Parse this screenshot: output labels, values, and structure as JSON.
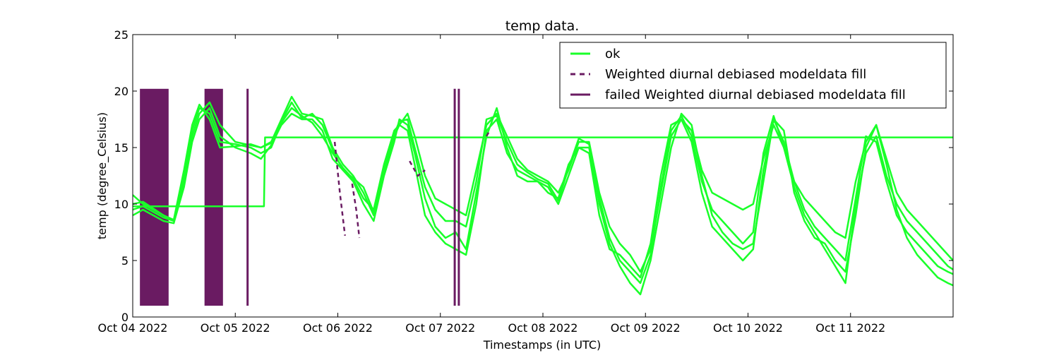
{
  "chart_data": {
    "type": "line",
    "title": "temp data.",
    "xlabel": "Timestamps (in UTC)",
    "ylabel": "temp (degree_Celsius)",
    "ylim": [
      0,
      25
    ],
    "xlim": [
      0,
      8
    ],
    "x_unit": "days since Oct 04 2022 00:00 UTC",
    "grid": false,
    "legend_position": "top-right",
    "yticks": [
      0,
      5,
      10,
      15,
      20,
      25
    ],
    "xticks": [
      {
        "value": 0,
        "label": "Oct 04 2022"
      },
      {
        "value": 1,
        "label": "Oct 05 2022"
      },
      {
        "value": 2,
        "label": "Oct 06 2022"
      },
      {
        "value": 3,
        "label": "Oct 07 2022"
      },
      {
        "value": 4,
        "label": "Oct 08 2022"
      },
      {
        "value": 5,
        "label": "Oct 09 2022"
      },
      {
        "value": 6,
        "label": "Oct 10 2022"
      },
      {
        "value": 7,
        "label": "Oct 11 2022"
      }
    ],
    "legend": [
      {
        "label": "ok",
        "style": "solid",
        "color": "#19ff29"
      },
      {
        "label": "Weighted diurnal debiased modeldata fill",
        "style": "dashed",
        "color": "#6a1b62"
      },
      {
        "label": "failed Weighted diurnal debiased modeldata fill",
        "style": "solid",
        "color": "#6a1b62"
      }
    ],
    "colors": {
      "ok": "#19ff29",
      "fill": "#6a1b62"
    },
    "series": [
      {
        "name": "ok",
        "x": [
          0,
          0.1,
          0.2,
          0.3,
          0.4,
          0.5,
          0.58,
          0.65,
          0.75,
          0.85,
          1.0,
          1.15,
          1.25,
          1.35,
          1.45,
          1.55,
          1.65,
          1.75,
          1.85,
          1.95,
          2.05,
          2.15,
          2.25,
          2.35,
          2.45,
          2.55,
          2.6,
          2.68,
          2.75,
          2.85,
          2.95,
          3.05,
          3.15,
          3.25,
          3.35,
          3.45,
          3.55,
          3.65,
          3.75,
          3.85,
          3.95,
          4.05,
          4.15,
          4.25,
          4.35,
          4.45,
          4.55,
          4.65,
          4.75,
          4.85,
          4.95,
          5.05,
          5.15,
          5.25,
          5.35,
          5.45,
          5.55,
          5.65,
          5.75,
          5.85,
          5.95,
          6.05,
          6.15,
          6.25,
          6.35,
          6.45,
          6.55,
          6.65,
          6.75,
          6.85,
          6.95,
          7.05,
          7.15,
          7.25,
          7.35,
          7.45,
          7.55,
          7.65,
          7.75,
          7.85,
          7.95,
          8.0
        ],
        "y": [
          10.8,
          10.0,
          9.5,
          9.0,
          8.5,
          12.0,
          16.0,
          18.0,
          19.0,
          17.0,
          15.5,
          15.2,
          15.0,
          15.5,
          17.5,
          19.5,
          18.0,
          17.8,
          17.5,
          15.0,
          13.5,
          12.5,
          11.0,
          9.0,
          13.0,
          16.0,
          17.0,
          18.0,
          16.0,
          12.5,
          10.5,
          10.0,
          9.5,
          9.0,
          13.0,
          17.0,
          18.0,
          16.0,
          14.0,
          13.0,
          12.5,
          12.0,
          11.0,
          13.0,
          15.5,
          15.5,
          11.0,
          8.0,
          6.5,
          5.5,
          4.0,
          6.0,
          11.0,
          16.0,
          17.5,
          16.5,
          13.0,
          11.0,
          10.5,
          10.0,
          9.5,
          10.0,
          14.0,
          17.0,
          15.0,
          12.0,
          10.5,
          9.5,
          8.5,
          7.5,
          7.0,
          12.0,
          15.5,
          17.0,
          14.0,
          11.0,
          9.5,
          8.5,
          7.5,
          6.5,
          5.5,
          5.0
        ]
      },
      {
        "name": "ok",
        "x": [
          0,
          0.1,
          0.2,
          0.3,
          0.4,
          0.5,
          0.58,
          0.65,
          0.75,
          0.85,
          1.0,
          1.15,
          1.25,
          1.35,
          1.45,
          1.55,
          1.65,
          1.75,
          1.85,
          1.95,
          2.05,
          2.15,
          2.25,
          2.35,
          2.45,
          2.55,
          2.6,
          2.68,
          2.75,
          2.85,
          2.95,
          3.05,
          3.15,
          3.25,
          3.35,
          3.45,
          3.55,
          3.65,
          3.75,
          3.85,
          3.95,
          4.05,
          4.15,
          4.25,
          4.35,
          4.45,
          4.55,
          4.65,
          4.75,
          4.85,
          4.95,
          5.05,
          5.15,
          5.25,
          5.35,
          5.45,
          5.55,
          5.65,
          5.75,
          5.85,
          5.95,
          6.05,
          6.15,
          6.25,
          6.35,
          6.45,
          6.55,
          6.65,
          6.75,
          6.85,
          6.95,
          7.05,
          7.15,
          7.25,
          7.35,
          7.45,
          7.55,
          7.65,
          7.75,
          7.85,
          7.95,
          8.0
        ],
        "y": [
          9.0,
          9.5,
          9.0,
          8.5,
          8.3,
          11.5,
          15.5,
          17.5,
          18.5,
          16.0,
          15.0,
          14.5,
          14.0,
          15.2,
          17.0,
          18.0,
          17.5,
          17.5,
          16.5,
          14.0,
          13.0,
          12.0,
          10.0,
          8.5,
          12.5,
          15.5,
          17.5,
          17.0,
          14.5,
          10.5,
          8.0,
          7.0,
          7.5,
          6.0,
          11.0,
          16.0,
          18.5,
          15.0,
          12.5,
          12.0,
          12.0,
          11.5,
          10.0,
          12.5,
          15.0,
          15.0,
          10.0,
          6.5,
          4.5,
          3.0,
          2.0,
          5.0,
          10.0,
          15.0,
          18.0,
          17.0,
          12.5,
          9.0,
          7.5,
          6.5,
          6.0,
          6.5,
          12.0,
          17.5,
          16.5,
          11.0,
          8.5,
          7.0,
          6.5,
          5.0,
          4.0,
          9.0,
          15.0,
          17.0,
          13.5,
          9.5,
          7.0,
          5.5,
          4.5,
          3.5,
          3.0,
          2.8
        ]
      },
      {
        "name": "ok",
        "x": [
          0,
          0.1,
          0.2,
          0.3,
          0.4,
          0.5,
          0.58,
          0.65,
          0.75,
          0.85,
          1.0,
          1.15,
          1.25,
          1.35,
          1.45,
          1.55,
          1.65,
          1.75,
          1.85,
          1.95,
          2.05,
          2.15,
          2.25,
          2.35,
          2.45,
          2.55,
          2.6,
          2.68,
          2.75,
          2.85,
          2.95,
          3.05,
          3.15,
          3.25,
          3.35,
          3.45,
          3.55,
          3.65,
          3.75,
          3.85,
          3.95,
          4.05,
          4.15,
          4.25,
          4.35,
          4.45,
          4.55,
          4.65,
          4.75,
          4.85,
          4.95,
          5.05,
          5.15,
          5.25,
          5.35,
          5.45,
          5.55,
          5.65,
          5.75,
          5.85,
          5.95,
          6.05,
          6.15,
          6.25,
          6.35,
          6.45,
          6.55,
          6.65,
          6.75,
          6.85,
          6.95,
          7.05,
          7.15,
          7.25,
          7.35,
          7.45,
          7.55,
          7.65,
          7.75,
          7.85,
          7.95,
          8.0
        ],
        "y": [
          9.5,
          9.8,
          9.3,
          8.8,
          8.5,
          12.5,
          16.5,
          18.5,
          18.0,
          15.5,
          15.3,
          15.0,
          14.5,
          15.0,
          17.2,
          18.5,
          17.8,
          17.2,
          16.0,
          14.5,
          13.2,
          12.2,
          10.5,
          9.5,
          13.5,
          16.5,
          17.0,
          16.5,
          13.5,
          9.0,
          7.5,
          6.5,
          6.0,
          5.5,
          10.0,
          16.5,
          17.5,
          14.5,
          13.0,
          12.5,
          12.0,
          11.0,
          10.5,
          13.5,
          15.0,
          14.5,
          9.0,
          6.0,
          5.5,
          4.5,
          3.5,
          6.5,
          12.5,
          17.0,
          17.5,
          15.5,
          11.0,
          8.0,
          7.0,
          6.0,
          5.0,
          6.0,
          13.0,
          17.5,
          15.5,
          12.0,
          9.5,
          8.0,
          7.0,
          6.0,
          5.0,
          10.5,
          16.0,
          15.5,
          12.0,
          9.0,
          7.5,
          6.5,
          5.5,
          4.5,
          4.0,
          3.8
        ]
      },
      {
        "name": "ok",
        "x": [
          0,
          0.1,
          0.2,
          0.3,
          0.4,
          0.5,
          0.58,
          0.65,
          0.75,
          0.85,
          1.0,
          1.15,
          1.25,
          1.35,
          1.45,
          1.55,
          1.65,
          1.75,
          1.85,
          1.95,
          2.05,
          2.15,
          2.25,
          2.35,
          2.45,
          2.55,
          2.6,
          2.68,
          2.75,
          2.85,
          2.95,
          3.05,
          3.15,
          3.25,
          3.35,
          3.45,
          3.55,
          3.65,
          3.75,
          3.85,
          3.95,
          4.05,
          4.15,
          4.25,
          4.35,
          4.45,
          4.55,
          4.65,
          4.75,
          4.85,
          4.95,
          5.05,
          5.15,
          5.25,
          5.35,
          5.45,
          5.55,
          5.65,
          5.75,
          5.85,
          5.95,
          6.05,
          6.15,
          6.25,
          6.35,
          6.45,
          6.55,
          6.65,
          6.75,
          6.85,
          6.95,
          7.05,
          7.15,
          7.25,
          7.35,
          7.45,
          7.55,
          7.65,
          7.75,
          7.85,
          7.95,
          8.0
        ],
        "y": [
          10.0,
          10.2,
          9.6,
          9.0,
          8.6,
          13.0,
          17.0,
          18.8,
          17.5,
          15.0,
          15.1,
          15.3,
          15.0,
          15.4,
          17.3,
          19.0,
          17.6,
          18.0,
          17.0,
          14.8,
          13.0,
          12.3,
          11.5,
          9.3,
          12.8,
          16.2,
          17.3,
          17.5,
          15.0,
          11.5,
          9.5,
          8.5,
          8.5,
          8.0,
          12.0,
          17.5,
          17.8,
          15.5,
          13.5,
          12.8,
          12.2,
          11.8,
          10.3,
          13.2,
          15.8,
          15.3,
          10.5,
          7.0,
          5.0,
          4.0,
          3.0,
          5.5,
          11.5,
          16.5,
          17.8,
          16.0,
          12.0,
          9.5,
          8.5,
          7.5,
          6.5,
          7.5,
          14.5,
          17.8,
          15.0,
          11.5,
          9.0,
          7.5,
          6.0,
          4.5,
          3.0,
          10.0,
          14.5,
          16.0,
          12.5,
          10.0,
          8.5,
          7.5,
          6.5,
          5.5,
          4.5,
          4.2
        ]
      },
      {
        "name": "ok",
        "x": [
          0,
          1.28,
          1.29,
          8.0
        ],
        "y": [
          9.8,
          9.8,
          15.9,
          15.9
        ]
      }
    ],
    "filled_bands": [
      {
        "name": "failed Weighted diurnal debiased modeldata fill",
        "x0": 0.07,
        "x1": 0.35,
        "y0": 1.0,
        "y1": 20.2
      },
      {
        "name": "failed Weighted diurnal debiased modeldata fill",
        "x0": 0.7,
        "x1": 0.88,
        "y0": 1.0,
        "y1": 20.2
      }
    ],
    "vertical_lines": [
      {
        "name": "failed Weighted diurnal debiased modeldata fill",
        "x": 1.12,
        "y0": 1.0,
        "y1": 20.2
      },
      {
        "name": "failed Weighted diurnal debiased modeldata fill",
        "x": 3.14,
        "y0": 1.0,
        "y1": 20.2
      },
      {
        "name": "failed Weighted diurnal debiased modeldata fill",
        "x": 3.18,
        "y0": 1.0,
        "y1": 20.2
      }
    ],
    "dashed_series": [
      {
        "name": "Weighted diurnal debiased modeldata fill",
        "x": [
          1.97,
          2.02,
          2.07
        ],
        "y": [
          15.5,
          11.0,
          7.2
        ]
      },
      {
        "name": "Weighted diurnal debiased modeldata fill",
        "x": [
          2.14,
          2.18,
          2.21
        ],
        "y": [
          11.8,
          9.5,
          7.0
        ]
      },
      {
        "name": "Weighted diurnal debiased modeldata fill",
        "x": [
          2.7,
          2.78,
          2.85
        ],
        "y": [
          13.8,
          12.5,
          13.0
        ]
      },
      {
        "name": "Weighted diurnal debiased modeldata fill",
        "x": [
          3.45,
          3.48
        ],
        "y": [
          16.0,
          16.5
        ]
      }
    ]
  }
}
